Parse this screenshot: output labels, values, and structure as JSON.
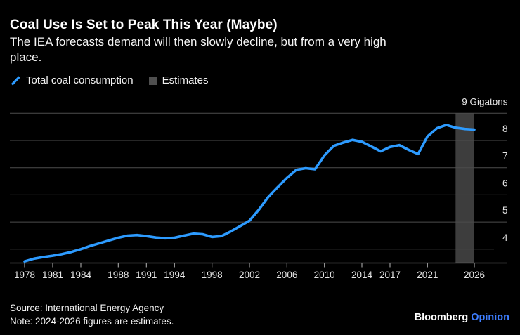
{
  "header": {
    "title": "Coal Use Is Set to Peak This Year (Maybe)",
    "subtitle_line1": "The IEA forecasts demand will then slowly decline, but from a very high",
    "subtitle_line2": "place."
  },
  "legend": {
    "series_label": "Total coal consumption",
    "estimates_label": "Estimates"
  },
  "chart_data": {
    "type": "line",
    "title": "Coal Use Is Set to Peak This Year (Maybe)",
    "ylabel": "Gigatons",
    "x": [
      1978,
      1979,
      1980,
      1981,
      1982,
      1983,
      1984,
      1985,
      1986,
      1987,
      1988,
      1989,
      1990,
      1991,
      1992,
      1993,
      1994,
      1995,
      1996,
      1997,
      1998,
      1999,
      2000,
      2001,
      2002,
      2003,
      2004,
      2005,
      2006,
      2007,
      2008,
      2009,
      2010,
      2011,
      2012,
      2013,
      2014,
      2015,
      2016,
      2017,
      2018,
      2019,
      2020,
      2021,
      2022,
      2023,
      2024,
      2025,
      2026
    ],
    "series": [
      {
        "name": "Total coal consumption",
        "values": [
          3.55,
          3.65,
          3.71,
          3.76,
          3.82,
          3.9,
          4.0,
          4.12,
          4.22,
          4.32,
          4.42,
          4.5,
          4.52,
          4.48,
          4.43,
          4.4,
          4.42,
          4.5,
          4.57,
          4.55,
          4.45,
          4.48,
          4.65,
          4.85,
          5.05,
          5.45,
          5.92,
          6.28,
          6.62,
          6.92,
          6.98,
          6.94,
          7.45,
          7.8,
          7.92,
          8.02,
          7.95,
          7.78,
          7.6,
          7.76,
          7.83,
          7.65,
          7.5,
          8.15,
          8.45,
          8.57,
          8.47,
          8.42,
          8.4
        ]
      }
    ],
    "x_ticks": [
      1978,
      1981,
      1984,
      1988,
      1991,
      1994,
      1998,
      2002,
      2006,
      2010,
      2014,
      2017,
      2021,
      2026
    ],
    "y_ticks": [
      {
        "value": 9,
        "label": "9 Gigatons"
      },
      {
        "value": 8,
        "label": "8"
      },
      {
        "value": 7,
        "label": "7"
      },
      {
        "value": 6,
        "label": "6"
      },
      {
        "value": 5,
        "label": "5"
      },
      {
        "value": 4,
        "label": "4"
      }
    ],
    "xlim": [
      1978,
      2026
    ],
    "ylim": [
      3.5,
      9
    ],
    "grid": true,
    "y_axis_side": "right",
    "estimates_band": {
      "from": 2024,
      "to": 2026
    }
  },
  "footer": {
    "source": "Source: International Energy Agency",
    "note": "Note: 2024-2026 figures are estimates."
  },
  "logo": {
    "brand": "Bloomberg",
    "suffix": "Opinion"
  },
  "colors": {
    "background": "#000000",
    "line_blue": "#2d9bff",
    "estimates_band": "#3d3d3d",
    "gridline": "#4d4d4d",
    "axis": "#9b9b9b",
    "tick_text": "#e6e6e6",
    "text": "#ffffff",
    "legend_swatch_gray": "#4f4f4f",
    "opinion_blue": "#3e7eff"
  }
}
